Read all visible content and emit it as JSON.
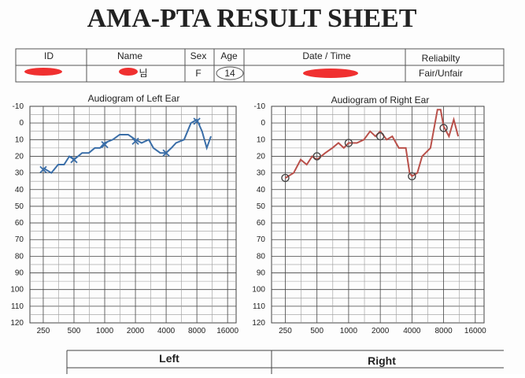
{
  "header": {
    "title": "AMA-PTA RESULT SHEET"
  },
  "table": {
    "columns": [
      "ID",
      "Name",
      "Sex",
      "Age",
      "Date / Time",
      "Reliabilty"
    ],
    "row": {
      "name_suffix": "님",
      "sex": "F",
      "age": "14",
      "reliability": "Fair/Unfair"
    }
  },
  "audiograms": [
    {
      "title": "Audiogram of Left Ear",
      "xscale": "log",
      "xlim": [
        185,
        19400
      ],
      "ylim": [
        -10,
        120
      ],
      "xticks": [
        250,
        500,
        1000,
        2000,
        4000,
        8000,
        16000
      ],
      "yticks": [
        -10,
        0,
        10,
        20,
        30,
        40,
        50,
        60,
        70,
        80,
        90,
        100,
        110,
        120
      ],
      "series": {
        "color": "#3a6ea8",
        "x": [
          250,
          300,
          350,
          400,
          450,
          500,
          600,
          700,
          800,
          900,
          1000,
          1200,
          1400,
          1700,
          2000,
          2300,
          2700,
          3000,
          3500,
          4000,
          4500,
          5000,
          6000,
          7000,
          8000,
          9000,
          10000,
          11000
        ],
        "values": [
          27,
          30,
          25,
          25,
          20,
          22,
          18,
          18,
          15,
          15,
          12,
          10,
          7,
          7,
          10,
          12,
          10,
          15,
          18,
          18,
          15,
          12,
          10,
          0,
          -2,
          5,
          15,
          8
        ]
      },
      "markers": {
        "symbol": "x",
        "x": [
          250,
          500,
          1000,
          2000,
          4000,
          8000
        ],
        "values": [
          28,
          22,
          13,
          11,
          18,
          -1
        ]
      }
    },
    {
      "title": "Audiogram of Right Ear",
      "xscale": "log",
      "xlim": [
        185,
        19400
      ],
      "ylim": [
        -10,
        120
      ],
      "xticks": [
        250,
        500,
        1000,
        2000,
        4000,
        8000,
        16000
      ],
      "yticks": [
        -10,
        0,
        10,
        20,
        30,
        40,
        50,
        60,
        70,
        80,
        90,
        100,
        110,
        120
      ],
      "series": {
        "color": "#b9504a",
        "x": [
          250,
          300,
          350,
          400,
          450,
          500,
          600,
          700,
          800,
          900,
          1000,
          1200,
          1400,
          1600,
          1800,
          2000,
          2300,
          2600,
          3000,
          3500,
          3800,
          4000,
          4500,
          5000,
          6000,
          7000,
          7500,
          8000,
          9000,
          10000,
          11000
        ],
        "values": [
          33,
          30,
          22,
          25,
          20,
          22,
          18,
          15,
          12,
          15,
          12,
          12,
          10,
          5,
          8,
          5,
          10,
          8,
          15,
          15,
          30,
          32,
          30,
          20,
          15,
          -8,
          -8,
          2,
          8,
          -2,
          8
        ]
      },
      "markers": {
        "symbol": "o",
        "x": [
          250,
          500,
          1000,
          2000,
          4000,
          8000
        ],
        "values": [
          33,
          20,
          12,
          8,
          32,
          3
        ]
      }
    }
  ],
  "bottom": {
    "left": "Left",
    "right": "Right"
  }
}
